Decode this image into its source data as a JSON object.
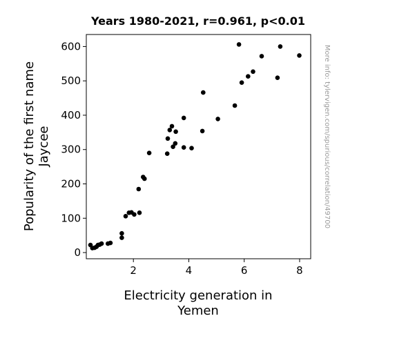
{
  "chart_data": {
    "type": "scatter",
    "title": "Years 1980-2021, r=0.961, p<0.01",
    "xlabel": [
      "Electricity generation in",
      "Yemen"
    ],
    "ylabel": [
      "Popularity of the first name",
      "Jaycee"
    ],
    "watermark": "More info: tylervigen.com/spurious/correlation/49700",
    "xlim": [
      0.3,
      8.4
    ],
    "ylim": [
      -18,
      635
    ],
    "xticks": [
      2,
      4,
      6,
      8
    ],
    "yticks": [
      0,
      100,
      200,
      300,
      400,
      500,
      600
    ],
    "grid": false,
    "marker_color": "#000000",
    "points": [
      {
        "x": 0.45,
        "y": 22
      },
      {
        "x": 0.52,
        "y": 13
      },
      {
        "x": 0.6,
        "y": 14
      },
      {
        "x": 0.67,
        "y": 17
      },
      {
        "x": 0.72,
        "y": 22
      },
      {
        "x": 0.78,
        "y": 23
      },
      {
        "x": 0.85,
        "y": 26
      },
      {
        "x": 1.08,
        "y": 26
      },
      {
        "x": 1.17,
        "y": 28
      },
      {
        "x": 1.58,
        "y": 43
      },
      {
        "x": 1.58,
        "y": 56
      },
      {
        "x": 1.72,
        "y": 106
      },
      {
        "x": 1.84,
        "y": 116
      },
      {
        "x": 1.93,
        "y": 117
      },
      {
        "x": 2.03,
        "y": 111
      },
      {
        "x": 2.22,
        "y": 116
      },
      {
        "x": 2.19,
        "y": 185
      },
      {
        "x": 2.35,
        "y": 220
      },
      {
        "x": 2.4,
        "y": 215
      },
      {
        "x": 2.57,
        "y": 290
      },
      {
        "x": 3.22,
        "y": 288
      },
      {
        "x": 3.24,
        "y": 332
      },
      {
        "x": 3.31,
        "y": 357
      },
      {
        "x": 3.39,
        "y": 368
      },
      {
        "x": 3.43,
        "y": 308
      },
      {
        "x": 3.51,
        "y": 318
      },
      {
        "x": 3.53,
        "y": 352
      },
      {
        "x": 3.82,
        "y": 392
      },
      {
        "x": 3.82,
        "y": 306
      },
      {
        "x": 4.1,
        "y": 304
      },
      {
        "x": 4.49,
        "y": 354
      },
      {
        "x": 4.52,
        "y": 466
      },
      {
        "x": 5.05,
        "y": 389
      },
      {
        "x": 5.66,
        "y": 428
      },
      {
        "x": 5.81,
        "y": 606
      },
      {
        "x": 5.91,
        "y": 495
      },
      {
        "x": 6.14,
        "y": 513
      },
      {
        "x": 6.32,
        "y": 527
      },
      {
        "x": 6.63,
        "y": 572
      },
      {
        "x": 7.2,
        "y": 509
      },
      {
        "x": 7.3,
        "y": 600
      },
      {
        "x": 7.99,
        "y": 574
      }
    ]
  }
}
